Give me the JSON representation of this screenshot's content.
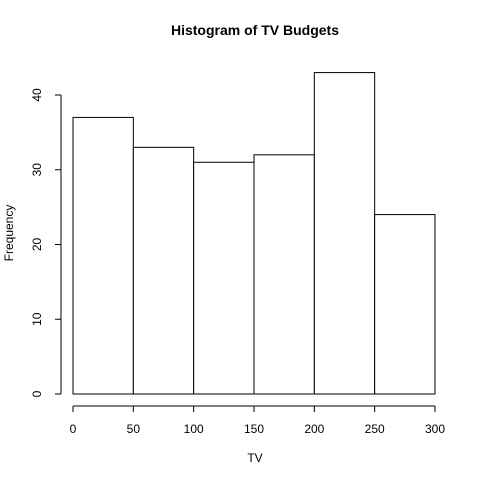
{
  "chart_data": {
    "type": "bar",
    "title": "Histogram of TV Budgets",
    "xlabel": "TV",
    "ylabel": "Frequency",
    "bins": [
      {
        "from": 0,
        "to": 50,
        "count": 37
      },
      {
        "from": 50,
        "to": 100,
        "count": 33
      },
      {
        "from": 100,
        "to": 150,
        "count": 31
      },
      {
        "from": 150,
        "to": 200,
        "count": 32
      },
      {
        "from": 200,
        "to": 250,
        "count": 43
      },
      {
        "from": 250,
        "to": 300,
        "count": 24
      }
    ],
    "xlim": [
      0,
      300
    ],
    "ylim": [
      0,
      40
    ],
    "x_ticks": [
      "0",
      "50",
      "100",
      "150",
      "200",
      "250",
      "300"
    ],
    "y_ticks": [
      "0",
      "10",
      "20",
      "30",
      "40"
    ],
    "grid": false,
    "bar_fill": "#ffffff",
    "bar_stroke": "#000000"
  }
}
